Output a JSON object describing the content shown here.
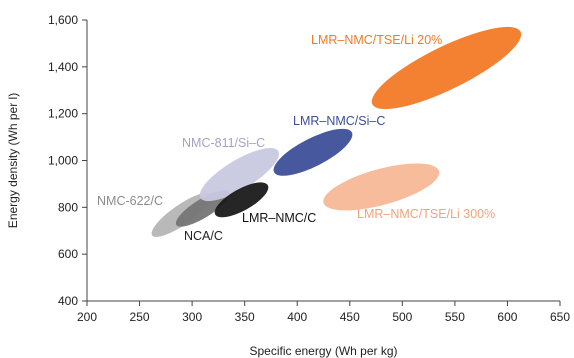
{
  "chart_data": {
    "type": "scatter",
    "title": "",
    "xlabel": "Specific energy (Wh per kg)",
    "ylabel": "Energy density (Wh per l)",
    "xlim": [
      200,
      650
    ],
    "ylim": [
      400,
      1600
    ],
    "x_ticks": [
      "200",
      "250",
      "300",
      "350",
      "400",
      "450",
      "500",
      "550",
      "600",
      "650"
    ],
    "y_ticks": [
      "400",
      "600",
      "800",
      "1,000",
      "1,200",
      "1,400",
      "1,600"
    ],
    "grid": false,
    "legend": "none",
    "series": [
      {
        "name": "NMC-622/C",
        "color": "#b5b5b5",
        "label_color": "#8c8c8c",
        "x_range": [
          262,
          318
        ],
        "y_range": [
          680,
          855
        ],
        "center": [
          290,
          768
        ]
      },
      {
        "name": "NCA/C",
        "color": "#757575",
        "label_color": "#222222",
        "x_range": [
          285,
          335
        ],
        "y_range": [
          725,
          865
        ],
        "center": [
          310,
          795
        ]
      },
      {
        "name": "NMC-811/Si–C",
        "color": "#c8c8df",
        "label_color": "#a3a3c8",
        "x_range": [
          308,
          382
        ],
        "y_range": [
          840,
          1040
        ],
        "center": [
          345,
          940
        ]
      },
      {
        "name": "LMR–NMC/C",
        "color": "#1a1a1a",
        "label_color": "#111111",
        "x_range": [
          322,
          372
        ],
        "y_range": [
          770,
          895
        ],
        "center": [
          347,
          832
        ]
      },
      {
        "name": "LMR–NMC/Si–C",
        "color": "#3d4f9a",
        "label_color": "#3d4f9a",
        "x_range": [
          378,
          452
        ],
        "y_range": [
          950,
          1120
        ],
        "center": [
          415,
          1035
        ]
      },
      {
        "name": "LMR–NMC/TSE/Li 300%",
        "color": "#f6b896",
        "label_color": "#f2a27c",
        "x_range": [
          425,
          535
        ],
        "y_range": [
          820,
          955
        ],
        "center": [
          480,
          887
        ]
      },
      {
        "name": "LMR–NMC/TSE/Li 20%",
        "color": "#f27a26",
        "label_color": "#f27a26",
        "x_range": [
          472,
          613
        ],
        "y_range": [
          1240,
          1550
        ],
        "center": [
          542,
          1395
        ]
      }
    ]
  }
}
